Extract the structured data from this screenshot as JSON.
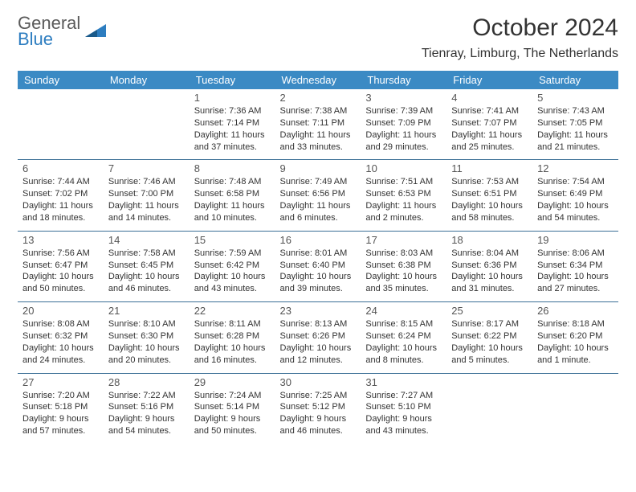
{
  "logo": {
    "line1": "General",
    "line2": "Blue",
    "color1": "#5a5a5a",
    "color2": "#2d7dc0",
    "shape_color": "#2d7dc0"
  },
  "header": {
    "title": "October 2024",
    "location": "Tienray, Limburg, The Netherlands"
  },
  "colors": {
    "header_bg": "#3b8ac4",
    "header_text": "#ffffff",
    "row_border": "#3b6f96",
    "body_bg": "#ffffff",
    "text": "#333333"
  },
  "days_of_week": [
    "Sunday",
    "Monday",
    "Tuesday",
    "Wednesday",
    "Thursday",
    "Friday",
    "Saturday"
  ],
  "weeks": [
    [
      null,
      null,
      {
        "n": "1",
        "sr": "Sunrise: 7:36 AM",
        "ss": "Sunset: 7:14 PM",
        "dl": "Daylight: 11 hours and 37 minutes."
      },
      {
        "n": "2",
        "sr": "Sunrise: 7:38 AM",
        "ss": "Sunset: 7:11 PM",
        "dl": "Daylight: 11 hours and 33 minutes."
      },
      {
        "n": "3",
        "sr": "Sunrise: 7:39 AM",
        "ss": "Sunset: 7:09 PM",
        "dl": "Daylight: 11 hours and 29 minutes."
      },
      {
        "n": "4",
        "sr": "Sunrise: 7:41 AM",
        "ss": "Sunset: 7:07 PM",
        "dl": "Daylight: 11 hours and 25 minutes."
      },
      {
        "n": "5",
        "sr": "Sunrise: 7:43 AM",
        "ss": "Sunset: 7:05 PM",
        "dl": "Daylight: 11 hours and 21 minutes."
      }
    ],
    [
      {
        "n": "6",
        "sr": "Sunrise: 7:44 AM",
        "ss": "Sunset: 7:02 PM",
        "dl": "Daylight: 11 hours and 18 minutes."
      },
      {
        "n": "7",
        "sr": "Sunrise: 7:46 AM",
        "ss": "Sunset: 7:00 PM",
        "dl": "Daylight: 11 hours and 14 minutes."
      },
      {
        "n": "8",
        "sr": "Sunrise: 7:48 AM",
        "ss": "Sunset: 6:58 PM",
        "dl": "Daylight: 11 hours and 10 minutes."
      },
      {
        "n": "9",
        "sr": "Sunrise: 7:49 AM",
        "ss": "Sunset: 6:56 PM",
        "dl": "Daylight: 11 hours and 6 minutes."
      },
      {
        "n": "10",
        "sr": "Sunrise: 7:51 AM",
        "ss": "Sunset: 6:53 PM",
        "dl": "Daylight: 11 hours and 2 minutes."
      },
      {
        "n": "11",
        "sr": "Sunrise: 7:53 AM",
        "ss": "Sunset: 6:51 PM",
        "dl": "Daylight: 10 hours and 58 minutes."
      },
      {
        "n": "12",
        "sr": "Sunrise: 7:54 AM",
        "ss": "Sunset: 6:49 PM",
        "dl": "Daylight: 10 hours and 54 minutes."
      }
    ],
    [
      {
        "n": "13",
        "sr": "Sunrise: 7:56 AM",
        "ss": "Sunset: 6:47 PM",
        "dl": "Daylight: 10 hours and 50 minutes."
      },
      {
        "n": "14",
        "sr": "Sunrise: 7:58 AM",
        "ss": "Sunset: 6:45 PM",
        "dl": "Daylight: 10 hours and 46 minutes."
      },
      {
        "n": "15",
        "sr": "Sunrise: 7:59 AM",
        "ss": "Sunset: 6:42 PM",
        "dl": "Daylight: 10 hours and 43 minutes."
      },
      {
        "n": "16",
        "sr": "Sunrise: 8:01 AM",
        "ss": "Sunset: 6:40 PM",
        "dl": "Daylight: 10 hours and 39 minutes."
      },
      {
        "n": "17",
        "sr": "Sunrise: 8:03 AM",
        "ss": "Sunset: 6:38 PM",
        "dl": "Daylight: 10 hours and 35 minutes."
      },
      {
        "n": "18",
        "sr": "Sunrise: 8:04 AM",
        "ss": "Sunset: 6:36 PM",
        "dl": "Daylight: 10 hours and 31 minutes."
      },
      {
        "n": "19",
        "sr": "Sunrise: 8:06 AM",
        "ss": "Sunset: 6:34 PM",
        "dl": "Daylight: 10 hours and 27 minutes."
      }
    ],
    [
      {
        "n": "20",
        "sr": "Sunrise: 8:08 AM",
        "ss": "Sunset: 6:32 PM",
        "dl": "Daylight: 10 hours and 24 minutes."
      },
      {
        "n": "21",
        "sr": "Sunrise: 8:10 AM",
        "ss": "Sunset: 6:30 PM",
        "dl": "Daylight: 10 hours and 20 minutes."
      },
      {
        "n": "22",
        "sr": "Sunrise: 8:11 AM",
        "ss": "Sunset: 6:28 PM",
        "dl": "Daylight: 10 hours and 16 minutes."
      },
      {
        "n": "23",
        "sr": "Sunrise: 8:13 AM",
        "ss": "Sunset: 6:26 PM",
        "dl": "Daylight: 10 hours and 12 minutes."
      },
      {
        "n": "24",
        "sr": "Sunrise: 8:15 AM",
        "ss": "Sunset: 6:24 PM",
        "dl": "Daylight: 10 hours and 8 minutes."
      },
      {
        "n": "25",
        "sr": "Sunrise: 8:17 AM",
        "ss": "Sunset: 6:22 PM",
        "dl": "Daylight: 10 hours and 5 minutes."
      },
      {
        "n": "26",
        "sr": "Sunrise: 8:18 AM",
        "ss": "Sunset: 6:20 PM",
        "dl": "Daylight: 10 hours and 1 minute."
      }
    ],
    [
      {
        "n": "27",
        "sr": "Sunrise: 7:20 AM",
        "ss": "Sunset: 5:18 PM",
        "dl": "Daylight: 9 hours and 57 minutes."
      },
      {
        "n": "28",
        "sr": "Sunrise: 7:22 AM",
        "ss": "Sunset: 5:16 PM",
        "dl": "Daylight: 9 hours and 54 minutes."
      },
      {
        "n": "29",
        "sr": "Sunrise: 7:24 AM",
        "ss": "Sunset: 5:14 PM",
        "dl": "Daylight: 9 hours and 50 minutes."
      },
      {
        "n": "30",
        "sr": "Sunrise: 7:25 AM",
        "ss": "Sunset: 5:12 PM",
        "dl": "Daylight: 9 hours and 46 minutes."
      },
      {
        "n": "31",
        "sr": "Sunrise: 7:27 AM",
        "ss": "Sunset: 5:10 PM",
        "dl": "Daylight: 9 hours and 43 minutes."
      },
      null,
      null
    ]
  ]
}
